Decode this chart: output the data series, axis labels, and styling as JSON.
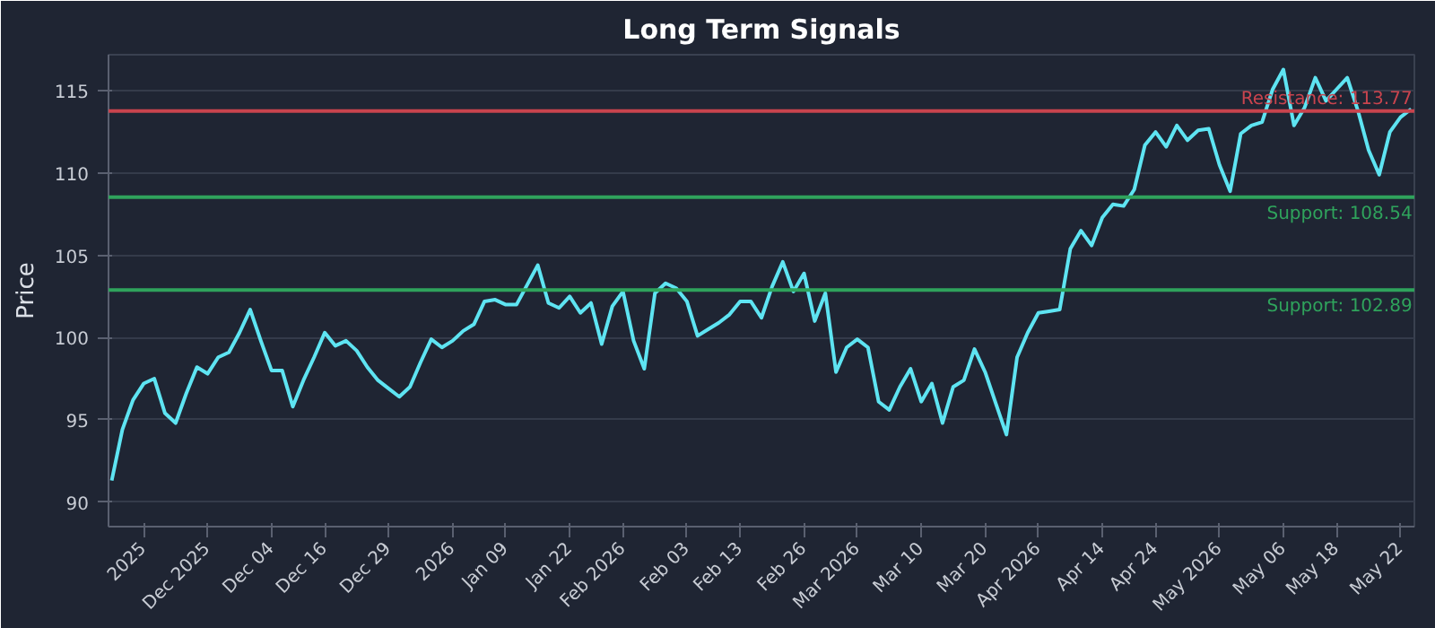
{
  "chart_data": {
    "type": "line",
    "title": "Long Term Signals",
    "ylabel": "Price",
    "categories": [
      null,
      null,
      null,
      "2025",
      null,
      null,
      null,
      null,
      null,
      "Dec 2025",
      null,
      null,
      null,
      null,
      null,
      "Dec 04",
      null,
      null,
      null,
      null,
      "Dec 16",
      null,
      null,
      null,
      null,
      null,
      "Dec 29",
      null,
      null,
      null,
      null,
      null,
      "2026",
      null,
      null,
      null,
      null,
      "Jan 09",
      null,
      null,
      null,
      null,
      null,
      "Jan 22",
      null,
      null,
      null,
      null,
      "Feb 2026",
      null,
      null,
      null,
      null,
      null,
      "Feb 03",
      null,
      null,
      null,
      null,
      "Feb 13",
      null,
      null,
      null,
      null,
      null,
      "Feb 26",
      null,
      null,
      null,
      null,
      "Mar 2026",
      null,
      null,
      null,
      null,
      null,
      "Mar 10",
      null,
      null,
      null,
      null,
      null,
      "Mar 20",
      null,
      null,
      null,
      null,
      "Apr 2026",
      null,
      null,
      null,
      null,
      null,
      "Apr 14",
      null,
      null,
      null,
      null,
      "Apr 24",
      null,
      null,
      null,
      null,
      null,
      "May 2026",
      null,
      null,
      null,
      null,
      null,
      "May 06",
      null,
      null,
      null,
      null,
      "May 18",
      null,
      null,
      null,
      null,
      null,
      "May 22",
      null
    ],
    "series": [
      {
        "color": "#5ee4f2",
        "values": [
          91.3,
          94.4,
          96.2,
          97.2,
          97.5,
          95.4,
          94.8,
          96.6,
          98.2,
          97.8,
          98.8,
          99.1,
          100.3,
          101.7,
          99.8,
          98.0,
          98.0,
          95.8,
          97.4,
          98.8,
          100.3,
          99.5,
          99.8,
          99.2,
          98.2,
          97.4,
          96.9,
          96.4,
          97.0,
          98.5,
          99.9,
          99.4,
          99.8,
          100.4,
          100.8,
          102.2,
          102.3,
          102.0,
          102.0,
          103.2,
          104.4,
          102.1,
          101.8,
          102.5,
          101.5,
          102.1,
          99.6,
          101.9,
          102.8,
          99.8,
          98.1,
          102.7,
          103.3,
          103.0,
          102.2,
          100.1,
          100.5,
          100.9,
          101.4,
          102.2,
          102.2,
          101.2,
          103.1,
          104.6,
          102.8,
          103.9,
          101.0,
          102.7,
          97.9,
          99.4,
          99.9,
          99.4,
          96.1,
          95.6,
          97.0,
          98.1,
          96.1,
          97.2,
          94.8,
          97.0,
          97.4,
          99.3,
          97.9,
          96.0,
          94.1,
          98.8,
          100.3,
          101.5,
          101.6,
          101.7,
          105.4,
          106.5,
          105.6,
          107.3,
          108.1,
          108.0,
          109.0,
          111.7,
          112.5,
          111.6,
          112.9,
          112.0,
          112.6,
          112.7,
          110.5,
          108.9,
          112.4,
          112.9,
          113.1,
          115.1,
          116.3,
          112.9,
          114.0,
          115.8,
          114.4,
          115.1,
          115.8,
          113.8,
          111.4,
          109.9,
          112.5,
          113.4,
          113.9
        ]
      }
    ],
    "ylim": [
      88.5,
      117.2
    ],
    "yticks": [
      90,
      95,
      100,
      105,
      110,
      115
    ],
    "ref_lines": [
      {
        "axis": "y",
        "value": 113.77,
        "label": "Resistance: 113.77",
        "color": "#c9444e"
      },
      {
        "axis": "y",
        "value": 108.54,
        "label": "Support: 108.54",
        "color": "#2fa35c"
      },
      {
        "axis": "y",
        "value": 102.89,
        "label": "Support: 102.89",
        "color": "#2fa35c"
      }
    ],
    "grid": "y",
    "marker": "none",
    "line_style": "solid"
  }
}
